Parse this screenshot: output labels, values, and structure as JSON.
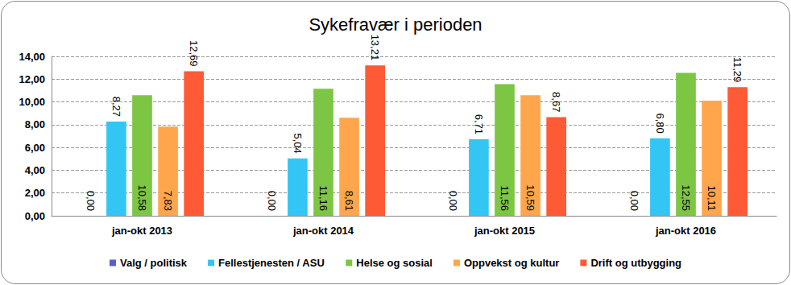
{
  "chart_data": {
    "type": "bar",
    "title": "Sykefravær i perioden",
    "categories": [
      "jan-okt 2013",
      "jan-okt 2014",
      "jan-okt 2015",
      "jan-okt 2016"
    ],
    "series": [
      {
        "name": "Valg / politisk",
        "color": "#5B5EC9",
        "values": [
          0,
          0,
          0,
          0
        ],
        "value_labels": [
          "0,00",
          "0,00",
          "0,00",
          "0,00"
        ]
      },
      {
        "name": "Fellestjenesten / ASU",
        "color": "#33C6F4",
        "values": [
          8.27,
          5.04,
          6.71,
          6.8
        ],
        "value_labels": [
          "8,27",
          "5,04",
          "6,71",
          "6,80"
        ]
      },
      {
        "name": "Helse og sosial",
        "color": "#7CC644",
        "values": [
          10.58,
          11.16,
          11.56,
          12.55
        ],
        "value_labels": [
          "10,58",
          "11,16",
          "11,56",
          "12,55"
        ]
      },
      {
        "name": "Oppvekst og kultur",
        "color": "#FFA64D",
        "values": [
          7.83,
          8.61,
          10.59,
          10.11
        ],
        "value_labels": [
          "7,83",
          "8,61",
          "10,59",
          "10,11"
        ]
      },
      {
        "name": "Drift og utbygging",
        "color": "#FF5A36",
        "values": [
          12.69,
          13.21,
          8.67,
          11.29
        ],
        "value_labels": [
          "12,69",
          "13,21",
          "8,67",
          "11,29"
        ]
      }
    ],
    "ylim": [
      0,
      14
    ],
    "yticks": [
      {
        "value": 0,
        "label": "0,00"
      },
      {
        "value": 2,
        "label": "2,00"
      },
      {
        "value": 4,
        "label": "4,00"
      },
      {
        "value": 6,
        "label": "6,00"
      },
      {
        "value": 8,
        "label": "8,00"
      },
      {
        "value": 10,
        "label": "10,00"
      },
      {
        "value": 12,
        "label": "12,00"
      },
      {
        "value": 14,
        "label": "14,00"
      }
    ],
    "grid": true,
    "legend": "bottom",
    "data_labels": true
  }
}
